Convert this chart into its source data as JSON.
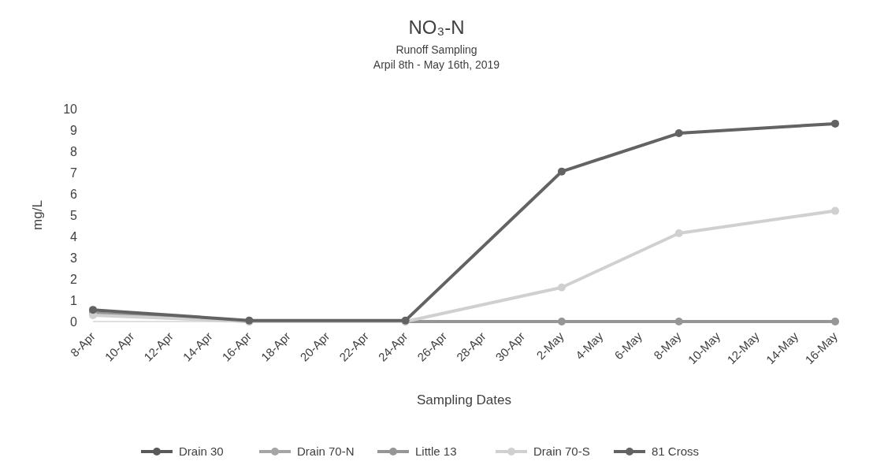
{
  "chart_data": {
    "type": "line",
    "title": "NO₃-N",
    "subtitle": "Runoff Sampling\nArpil 8th - May 16th, 2019",
    "xlabel": "Sampling Dates",
    "ylabel": "mg/L",
    "x": [
      "2019-04-08",
      "2019-04-16",
      "2019-04-24",
      "2019-05-02",
      "2019-05-08",
      "2019-05-16"
    ],
    "xlim": [
      "2019-04-08",
      "2019-05-16"
    ],
    "xticks": [
      {
        "value": "2019-04-08",
        "label": "8-Apr"
      },
      {
        "value": "2019-04-10",
        "label": "10-Apr"
      },
      {
        "value": "2019-04-12",
        "label": "12-Apr"
      },
      {
        "value": "2019-04-14",
        "label": "14-Apr"
      },
      {
        "value": "2019-04-16",
        "label": "16-Apr"
      },
      {
        "value": "2019-04-18",
        "label": "18-Apr"
      },
      {
        "value": "2019-04-20",
        "label": "20-Apr"
      },
      {
        "value": "2019-04-22",
        "label": "22-Apr"
      },
      {
        "value": "2019-04-24",
        "label": "24-Apr"
      },
      {
        "value": "2019-04-26",
        "label": "26-Apr"
      },
      {
        "value": "2019-04-28",
        "label": "28-Apr"
      },
      {
        "value": "2019-04-30",
        "label": "30-Apr"
      },
      {
        "value": "2019-05-02",
        "label": "2-May"
      },
      {
        "value": "2019-05-04",
        "label": "4-May"
      },
      {
        "value": "2019-05-06",
        "label": "6-May"
      },
      {
        "value": "2019-05-08",
        "label": "8-May"
      },
      {
        "value": "2019-05-10",
        "label": "10-May"
      },
      {
        "value": "2019-05-12",
        "label": "12-May"
      },
      {
        "value": "2019-05-14",
        "label": "14-May"
      },
      {
        "value": "2019-05-16",
        "label": "16-May"
      }
    ],
    "ylim": [
      0,
      10
    ],
    "yticks": [
      0,
      1,
      2,
      3,
      4,
      5,
      6,
      7,
      8,
      9,
      10
    ],
    "series": [
      {
        "name": "Drain 30",
        "color": "#595959",
        "values": [
          null,
          null,
          null,
          null,
          null,
          null
        ]
      },
      {
        "name": "Drain 70-N",
        "color": "#a5a5a5",
        "values": [
          null,
          null,
          null,
          null,
          null,
          null
        ]
      },
      {
        "name": "Little 13",
        "color": "#969696",
        "values": [
          0.4,
          0,
          0,
          0,
          0,
          0
        ]
      },
      {
        "name": "Drain 70-S",
        "color": "#d0d0d0",
        "values": [
          0.3,
          0,
          0,
          1.6,
          4.15,
          5.2
        ]
      },
      {
        "name": "81 Cross",
        "color": "#636363",
        "values": [
          0.55,
          0.05,
          0.05,
          7.05,
          8.85,
          9.3
        ]
      }
    ],
    "legend": "bottom",
    "marker": "circle",
    "line_style": "solid",
    "grid": false
  }
}
